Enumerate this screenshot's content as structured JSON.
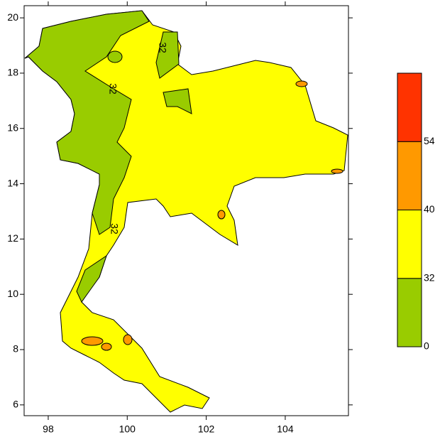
{
  "map": {
    "xlim": [
      97.39,
      105.6
    ],
    "xticks": [
      98,
      100,
      102,
      104
    ],
    "ylim": [
      5.61,
      20.44
    ],
    "yticks": [
      6,
      8,
      10,
      12,
      14,
      16,
      18,
      20
    ],
    "colorbar": {
      "levels": [
        0,
        32,
        40,
        54
      ],
      "colors": [
        "#99cc00",
        "#ffff00",
        "#ff9900",
        "#ff3300"
      ]
    },
    "contour_labels": [
      "32",
      "32",
      "32"
    ]
  }
}
